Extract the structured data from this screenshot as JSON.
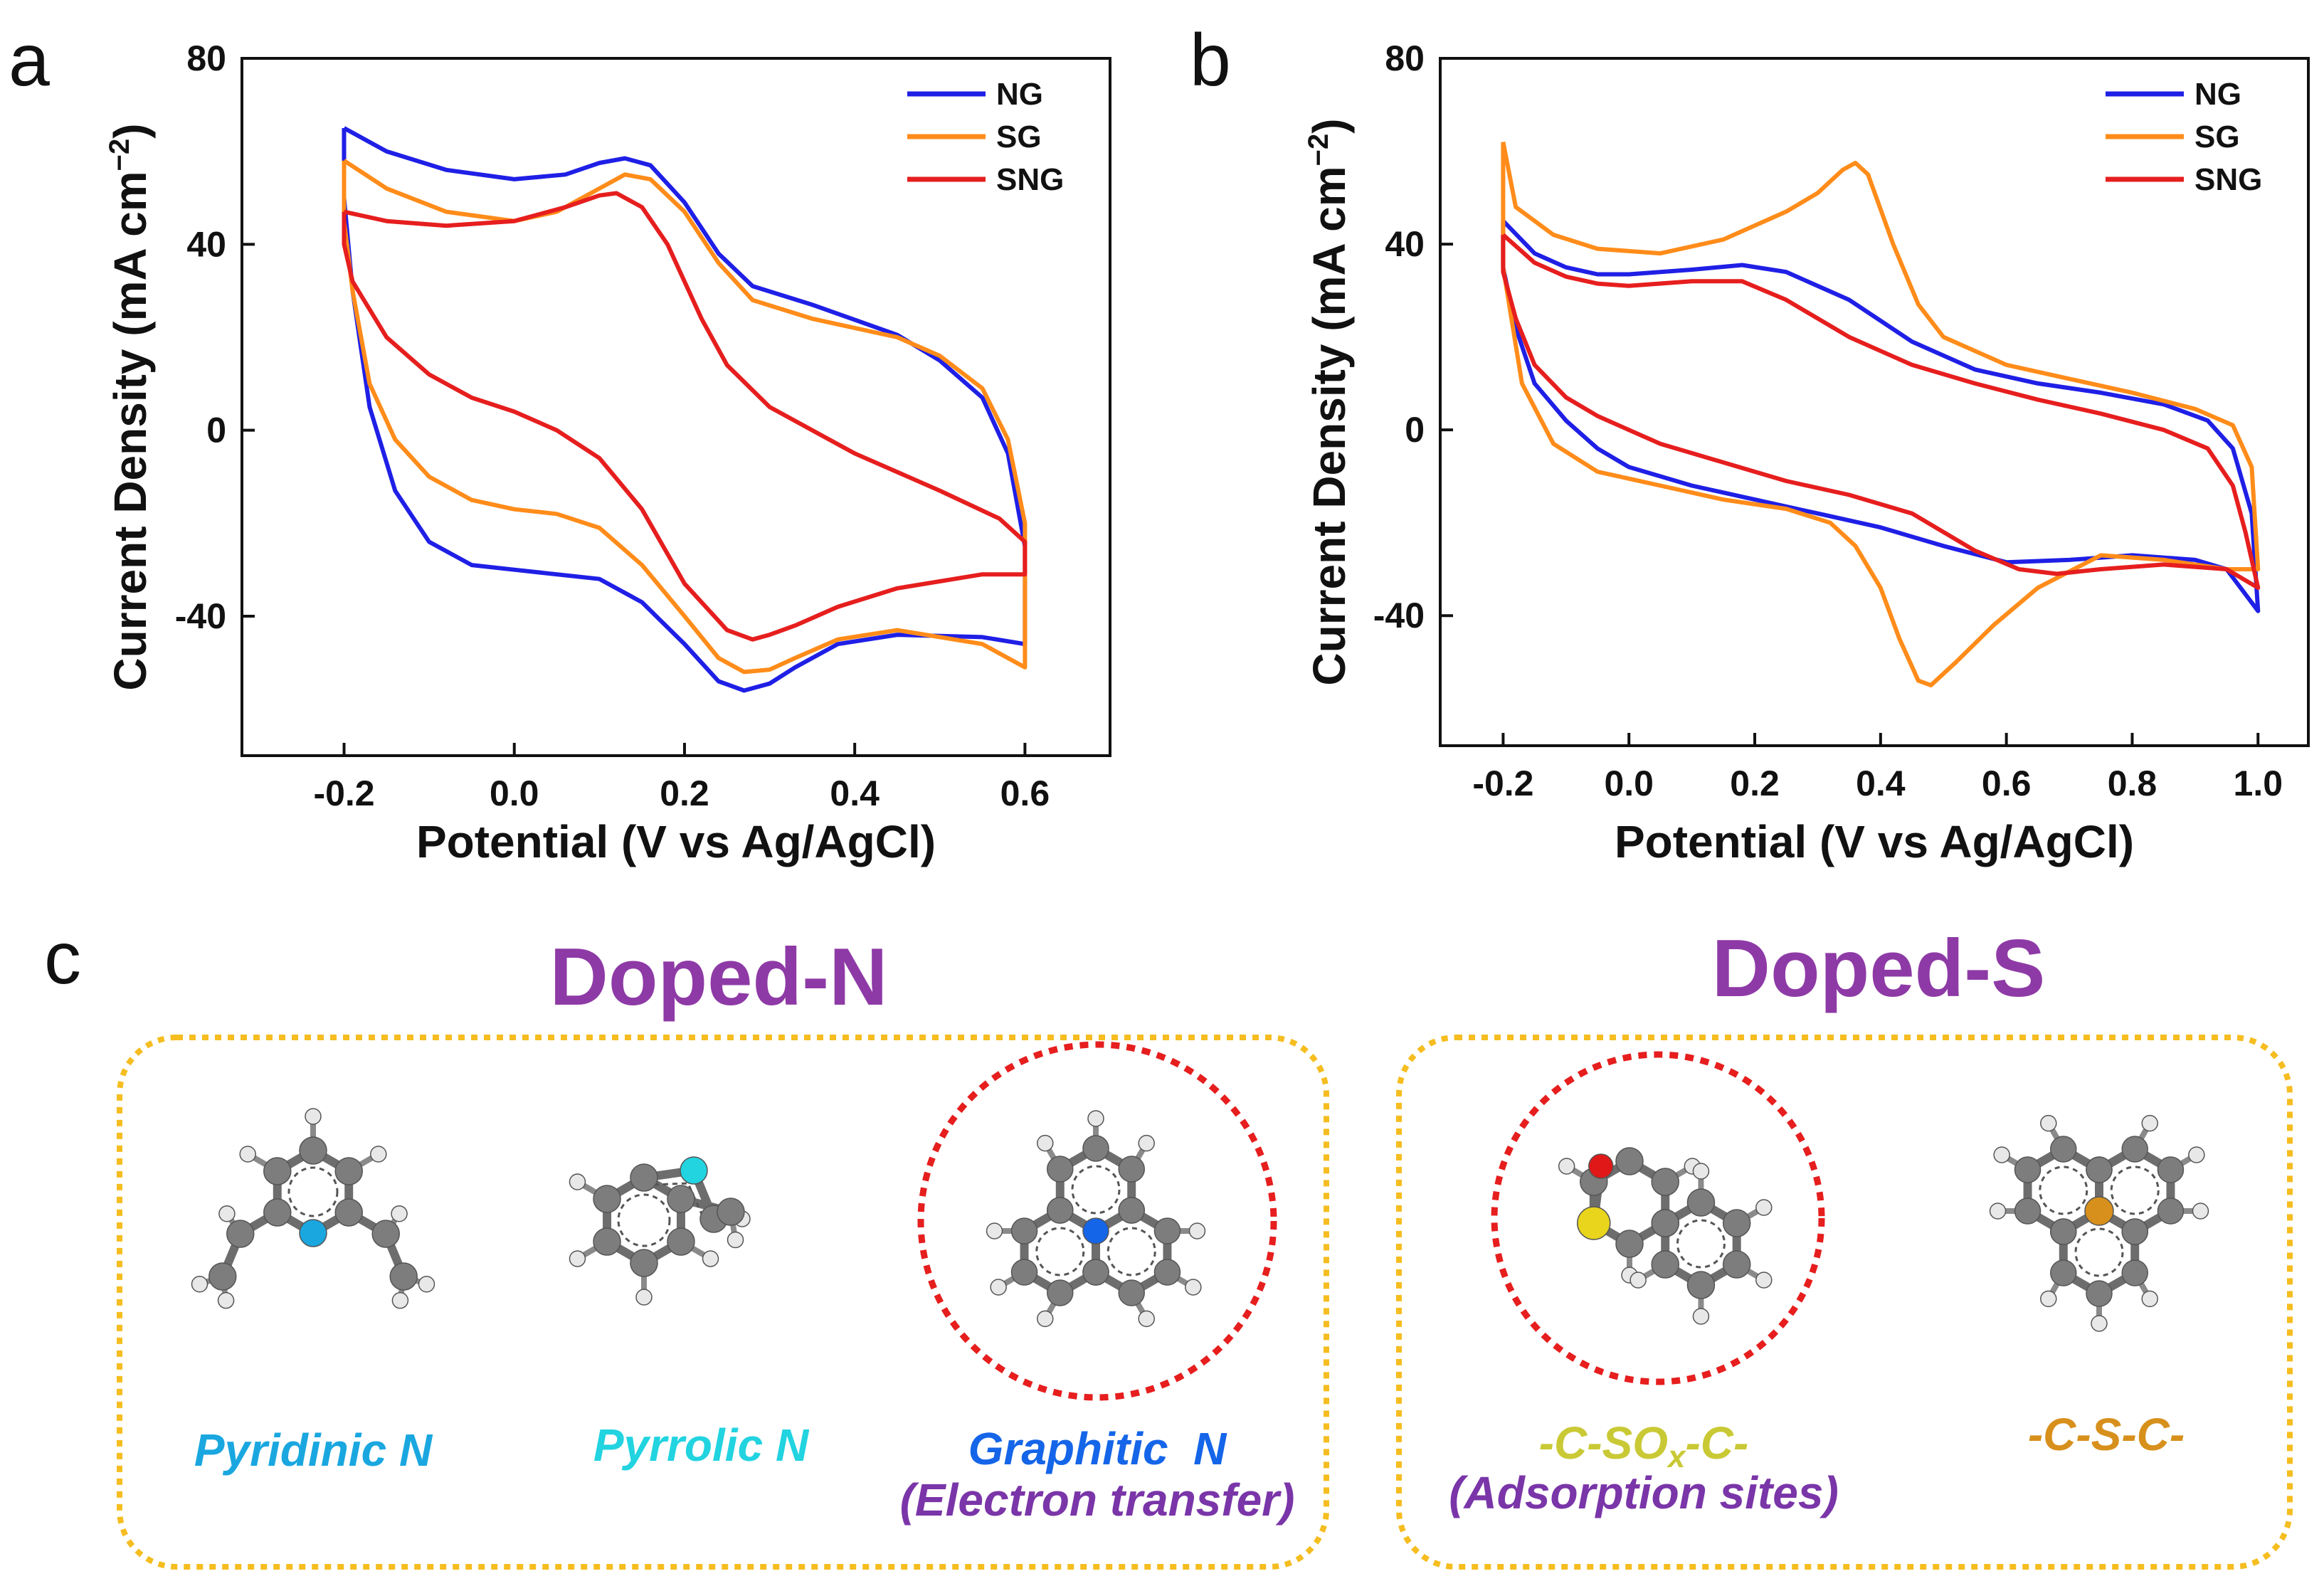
{
  "colors": {
    "NG": "#1f1fe6",
    "SG": "#ff8c1a",
    "SNG": "#e61e1e",
    "group_title": "#8e3aa6",
    "box": "#f5bd1f",
    "highlight_circle": "#e61e1e",
    "pyridinic": "#1aa7e0",
    "pyrrolic": "#22d3e0",
    "graphitic": "#1565e8",
    "sox": "#c9c935",
    "csc": "#d7901c",
    "note": "#7a35a8",
    "carbon": "#7d7d7d",
    "hydrogen": "#e8e8e8",
    "oxygen": "#e01818",
    "sulfur": "#e8d51c"
  },
  "chart_data": [
    {
      "panel": "a",
      "type": "line",
      "title": "",
      "xlabel": "Potential (V vs Ag/AgCl)",
      "ylabel": "Current Density (mA cm",
      "ylabel_sup": "−2",
      "ylabel_close": ")",
      "xlim": [
        -0.32,
        0.7
      ],
      "ylim": [
        -70,
        80
      ],
      "xticks": [
        -0.2,
        0.0,
        0.2,
        0.4,
        0.6
      ],
      "xtick_labels": [
        "-0.2",
        "0.0",
        "0.2",
        "0.4",
        "0.6"
      ],
      "yticks": [
        -40,
        0,
        40,
        80
      ],
      "ytick_labels": [
        "-40",
        "0",
        "40",
        "80"
      ],
      "legend_position": "top-right",
      "series": [
        {
          "name": "NG",
          "points": [
            [
              -0.2,
              65
            ],
            [
              -0.15,
              60
            ],
            [
              -0.08,
              56
            ],
            [
              0.0,
              54
            ],
            [
              0.06,
              55
            ],
            [
              0.1,
              57.5
            ],
            [
              0.13,
              58.5
            ],
            [
              0.16,
              57
            ],
            [
              0.2,
              49
            ],
            [
              0.24,
              38
            ],
            [
              0.28,
              31
            ],
            [
              0.35,
              27
            ],
            [
              0.45,
              20.5
            ],
            [
              0.5,
              15
            ],
            [
              0.55,
              7
            ],
            [
              0.58,
              -5
            ],
            [
              0.6,
              -25
            ],
            [
              0.6,
              -46
            ],
            [
              0.55,
              -44.5
            ],
            [
              0.45,
              -44
            ],
            [
              0.38,
              -46
            ],
            [
              0.33,
              -51
            ],
            [
              0.3,
              -54.5
            ],
            [
              0.27,
              -56
            ],
            [
              0.24,
              -54
            ],
            [
              0.2,
              -46
            ],
            [
              0.15,
              -37
            ],
            [
              0.1,
              -32
            ],
            [
              0.0,
              -30
            ],
            [
              -0.05,
              -29
            ],
            [
              -0.1,
              -24
            ],
            [
              -0.14,
              -13
            ],
            [
              -0.17,
              5
            ],
            [
              -0.19,
              30
            ],
            [
              -0.2,
              50
            ],
            [
              -0.2,
              65
            ]
          ]
        },
        {
          "name": "SG",
          "points": [
            [
              -0.2,
              58
            ],
            [
              -0.15,
              52
            ],
            [
              -0.08,
              47
            ],
            [
              0.0,
              45
            ],
            [
              0.05,
              47
            ],
            [
              0.1,
              52
            ],
            [
              0.13,
              55
            ],
            [
              0.16,
              54
            ],
            [
              0.2,
              47
            ],
            [
              0.24,
              36
            ],
            [
              0.28,
              28
            ],
            [
              0.35,
              24
            ],
            [
              0.45,
              20
            ],
            [
              0.5,
              16
            ],
            [
              0.55,
              9
            ],
            [
              0.58,
              -2
            ],
            [
              0.6,
              -20
            ],
            [
              0.6,
              -51
            ],
            [
              0.55,
              -46
            ],
            [
              0.45,
              -43
            ],
            [
              0.38,
              -45
            ],
            [
              0.33,
              -49
            ],
            [
              0.3,
              -51.5
            ],
            [
              0.27,
              -52
            ],
            [
              0.24,
              -49
            ],
            [
              0.2,
              -40
            ],
            [
              0.15,
              -29
            ],
            [
              0.1,
              -21
            ],
            [
              0.05,
              -18
            ],
            [
              0.0,
              -17
            ],
            [
              -0.05,
              -15
            ],
            [
              -0.1,
              -10
            ],
            [
              -0.14,
              -2
            ],
            [
              -0.17,
              10
            ],
            [
              -0.19,
              30
            ],
            [
              -0.2,
              45
            ],
            [
              -0.2,
              58
            ]
          ]
        },
        {
          "name": "SNG",
          "points": [
            [
              -0.2,
              47
            ],
            [
              -0.15,
              45
            ],
            [
              -0.08,
              44
            ],
            [
              0.0,
              45
            ],
            [
              0.06,
              48
            ],
            [
              0.1,
              50.5
            ],
            [
              0.12,
              51
            ],
            [
              0.15,
              48
            ],
            [
              0.18,
              40
            ],
            [
              0.22,
              24
            ],
            [
              0.25,
              14
            ],
            [
              0.3,
              5
            ],
            [
              0.4,
              -5
            ],
            [
              0.5,
              -13
            ],
            [
              0.57,
              -19
            ],
            [
              0.6,
              -24
            ],
            [
              0.6,
              -31
            ],
            [
              0.55,
              -31
            ],
            [
              0.45,
              -34
            ],
            [
              0.38,
              -38
            ],
            [
              0.33,
              -42
            ],
            [
              0.3,
              -44
            ],
            [
              0.28,
              -45
            ],
            [
              0.25,
              -43
            ],
            [
              0.2,
              -33
            ],
            [
              0.15,
              -17
            ],
            [
              0.1,
              -6
            ],
            [
              0.05,
              0
            ],
            [
              0.0,
              4
            ],
            [
              -0.05,
              7
            ],
            [
              -0.1,
              12
            ],
            [
              -0.15,
              20
            ],
            [
              -0.19,
              32
            ],
            [
              -0.2,
              40
            ],
            [
              -0.2,
              47
            ]
          ]
        }
      ]
    },
    {
      "panel": "b",
      "type": "line",
      "title": "",
      "xlabel": "Potential (V vs Ag/AgCl)",
      "ylabel": "Current Density (mA cm",
      "ylabel_sup": "−2",
      "ylabel_close": ")",
      "xlim": [
        -0.3,
        1.08
      ],
      "ylim": [
        -68,
        80
      ],
      "xticks": [
        -0.2,
        0.0,
        0.2,
        0.4,
        0.6,
        0.8,
        1.0
      ],
      "xtick_labels": [
        "-0.2",
        "0.0",
        "0.2",
        "0.4",
        "0.6",
        "0.8",
        "1.0"
      ],
      "yticks": [
        -40,
        0,
        40,
        80
      ],
      "ytick_labels": [
        "-40",
        "0",
        "40",
        "80"
      ],
      "legend_position": "top-right",
      "series": [
        {
          "name": "NG",
          "points": [
            [
              -0.2,
              45
            ],
            [
              -0.15,
              38
            ],
            [
              -0.1,
              35
            ],
            [
              -0.05,
              33.5
            ],
            [
              0.0,
              33.5
            ],
            [
              0.1,
              34.5
            ],
            [
              0.18,
              35.5
            ],
            [
              0.25,
              34
            ],
            [
              0.35,
              28
            ],
            [
              0.45,
              19
            ],
            [
              0.55,
              13
            ],
            [
              0.65,
              10
            ],
            [
              0.75,
              8
            ],
            [
              0.85,
              5.5
            ],
            [
              0.92,
              2
            ],
            [
              0.96,
              -4
            ],
            [
              0.99,
              -18
            ],
            [
              1.0,
              -39
            ],
            [
              0.95,
              -30
            ],
            [
              0.9,
              -28
            ],
            [
              0.8,
              -27
            ],
            [
              0.7,
              -28
            ],
            [
              0.6,
              -28.5
            ],
            [
              0.5,
              -25
            ],
            [
              0.4,
              -21
            ],
            [
              0.3,
              -18
            ],
            [
              0.2,
              -15
            ],
            [
              0.1,
              -12
            ],
            [
              0.0,
              -8
            ],
            [
              -0.05,
              -4
            ],
            [
              -0.1,
              2
            ],
            [
              -0.15,
              10
            ],
            [
              -0.18,
              22
            ],
            [
              -0.2,
              35
            ],
            [
              -0.2,
              45
            ]
          ]
        },
        {
          "name": "SG",
          "points": [
            [
              -0.2,
              62
            ],
            [
              -0.18,
              48
            ],
            [
              -0.12,
              42
            ],
            [
              -0.05,
              39
            ],
            [
              0.05,
              38
            ],
            [
              0.15,
              41
            ],
            [
              0.25,
              47
            ],
            [
              0.3,
              51
            ],
            [
              0.34,
              56
            ],
            [
              0.36,
              57.5
            ],
            [
              0.38,
              55
            ],
            [
              0.42,
              40
            ],
            [
              0.46,
              27
            ],
            [
              0.5,
              20
            ],
            [
              0.6,
              14
            ],
            [
              0.7,
              11
            ],
            [
              0.8,
              8
            ],
            [
              0.9,
              4.5
            ],
            [
              0.96,
              1
            ],
            [
              0.99,
              -8
            ],
            [
              1.0,
              -30
            ],
            [
              0.95,
              -30
            ],
            [
              0.85,
              -28
            ],
            [
              0.75,
              -27
            ],
            [
              0.65,
              -34
            ],
            [
              0.58,
              -42
            ],
            [
              0.52,
              -50
            ],
            [
              0.48,
              -55
            ],
            [
              0.46,
              -54
            ],
            [
              0.43,
              -45
            ],
            [
              0.4,
              -34
            ],
            [
              0.36,
              -25
            ],
            [
              0.32,
              -20
            ],
            [
              0.25,
              -17
            ],
            [
              0.15,
              -15
            ],
            [
              0.05,
              -12
            ],
            [
              -0.05,
              -9
            ],
            [
              -0.12,
              -3
            ],
            [
              -0.17,
              10
            ],
            [
              -0.2,
              35
            ],
            [
              -0.2,
              62
            ]
          ]
        },
        {
          "name": "SNG",
          "points": [
            [
              -0.2,
              42
            ],
            [
              -0.15,
              36
            ],
            [
              -0.1,
              33
            ],
            [
              -0.05,
              31.5
            ],
            [
              0.0,
              31
            ],
            [
              0.1,
              32
            ],
            [
              0.18,
              32
            ],
            [
              0.25,
              28
            ],
            [
              0.35,
              20
            ],
            [
              0.45,
              14
            ],
            [
              0.55,
              10
            ],
            [
              0.65,
              6.5
            ],
            [
              0.75,
              3.5
            ],
            [
              0.85,
              0
            ],
            [
              0.92,
              -4
            ],
            [
              0.96,
              -12
            ],
            [
              0.98,
              -22
            ],
            [
              1.0,
              -34
            ],
            [
              0.95,
              -30
            ],
            [
              0.85,
              -29
            ],
            [
              0.75,
              -30
            ],
            [
              0.68,
              -31
            ],
            [
              0.62,
              -30
            ],
            [
              0.55,
              -26
            ],
            [
              0.45,
              -18
            ],
            [
              0.35,
              -14
            ],
            [
              0.25,
              -11
            ],
            [
              0.15,
              -7
            ],
            [
              0.05,
              -3
            ],
            [
              0.0,
              0
            ],
            [
              -0.05,
              3
            ],
            [
              -0.1,
              7
            ],
            [
              -0.15,
              14
            ],
            [
              -0.18,
              24
            ],
            [
              -0.2,
              34
            ],
            [
              -0.2,
              42
            ]
          ]
        }
      ]
    }
  ],
  "panel_c": {
    "letter": "c",
    "groups": [
      {
        "title": "Doped-N",
        "molecules": [
          {
            "name": "pyridinic-n",
            "label": "Pyridinic N",
            "note": ""
          },
          {
            "name": "pyrrolic-n",
            "label": "Pyrrolic N",
            "note": ""
          },
          {
            "name": "graphitic-n",
            "label": "Graphitic  N",
            "note": "(Electron transfer)"
          }
        ]
      },
      {
        "title": "Doped-S",
        "molecules": [
          {
            "name": "c-sox-c",
            "label_pre": "-C-SO",
            "label_sub": "x",
            "label_post": "-C-",
            "note": "(Adsorption sites)"
          },
          {
            "name": "c-s-c",
            "label": "-C-S-C-",
            "note": ""
          }
        ]
      }
    ]
  }
}
